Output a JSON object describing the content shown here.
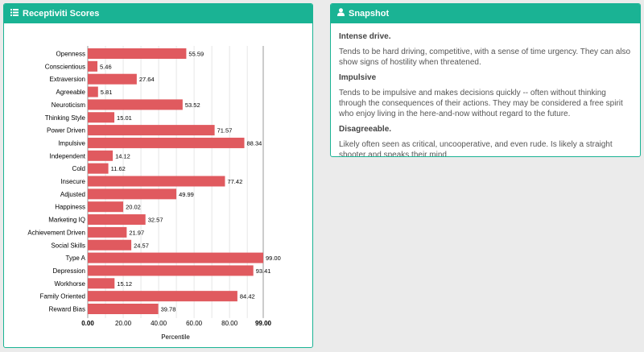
{
  "scores_panel": {
    "title": "Receptiviti Scores",
    "icon": "list-icon"
  },
  "snapshot_panel": {
    "title": "Snapshot",
    "icon": "user-icon",
    "sections": [
      {
        "heading": "Intense drive.",
        "text": "Tends to be hard driving, competitive, with a sense of time urgency. They can also show signs of hostility when threatened."
      },
      {
        "heading": "Impulsive",
        "text": "Tends to be impulsive and makes decisions quickly -- often without thinking through the consequences of their actions. They may be considered a free spirit who enjoy living in the here-and-now without regard to the future."
      },
      {
        "heading": "Disagreeable.",
        "text": "Likely often seen as critical, uncooperative, and even rude. Is likely a straight shooter and speaks their mind."
      }
    ]
  },
  "colors": {
    "accent": "#1ab394",
    "bar": "#e05a5f"
  },
  "chart_data": {
    "type": "bar",
    "orientation": "horizontal",
    "categories": [
      "Openness",
      "Conscientious",
      "Extraversion",
      "Agreeable",
      "Neuroticism",
      "Thinking Style",
      "Power Driven",
      "Impulsive",
      "Independent",
      "Cold",
      "Insecure",
      "Adjusted",
      "Happiness",
      "Marketing IQ",
      "Achievement Driven",
      "Social Skills",
      "Type A",
      "Depression",
      "Workhorse",
      "Family Oriented",
      "Reward Bias"
    ],
    "values": [
      55.59,
      5.46,
      27.64,
      5.81,
      53.52,
      15.01,
      71.57,
      88.34,
      14.12,
      11.62,
      77.42,
      49.99,
      20.02,
      32.57,
      21.97,
      24.57,
      99.0,
      93.41,
      15.12,
      84.42,
      39.78
    ],
    "value_labels": [
      "55.59",
      "5.46",
      "27.64",
      "5.81",
      "53.52",
      "15.01",
      "71.57",
      "88.34",
      "14.12",
      "11.62",
      "77.42",
      "49.99",
      "20.02",
      "32.57",
      "21.97",
      "24.57",
      "99.00",
      "93.41",
      "15.12",
      "84.42",
      "39.78"
    ],
    "xticks": [
      0,
      20,
      40,
      60,
      80,
      99
    ],
    "xtick_labels": [
      "0.00",
      "20.00",
      "40.00",
      "60.00",
      "80.00",
      "99.00"
    ],
    "xlabel": "Percentile",
    "xlim": [
      0,
      99
    ],
    "grid": true
  }
}
